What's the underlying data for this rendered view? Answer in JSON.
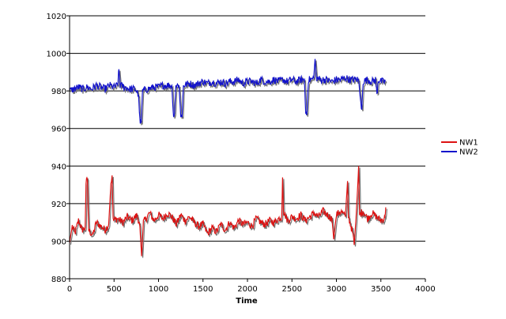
{
  "chart_data": {
    "type": "line",
    "title": "",
    "xlabel": "Time",
    "ylabel": "",
    "xlim": [
      0,
      4000
    ],
    "ylim": [
      880,
      1020
    ],
    "x_ticks": [
      0,
      500,
      1000,
      1500,
      2000,
      2500,
      3000,
      3500,
      4000
    ],
    "y_ticks": [
      880,
      900,
      920,
      940,
      960,
      980,
      1000,
      1020
    ],
    "grid": "horizontal",
    "legend_position": "right",
    "colors": {
      "NW1": "#dd1111",
      "NW2": "#1111cc",
      "shadow": "#777777",
      "axis": "#000000"
    },
    "series": [
      {
        "name": "NW1",
        "points": [
          [
            0,
            899
          ],
          [
            30,
            908
          ],
          [
            60,
            904
          ],
          [
            100,
            911
          ],
          [
            140,
            906
          ],
          [
            175,
            907
          ],
          [
            185,
            931
          ],
          [
            200,
            933
          ],
          [
            215,
            906
          ],
          [
            260,
            903
          ],
          [
            300,
            910
          ],
          [
            350,
            908
          ],
          [
            400,
            906
          ],
          [
            440,
            909
          ],
          [
            465,
            931
          ],
          [
            478,
            935
          ],
          [
            490,
            911
          ],
          [
            540,
            912
          ],
          [
            600,
            910
          ],
          [
            650,
            913
          ],
          [
            700,
            911
          ],
          [
            760,
            914
          ],
          [
            790,
            908
          ],
          [
            810,
            892
          ],
          [
            830,
            910
          ],
          [
            900,
            915
          ],
          [
            950,
            911
          ],
          [
            1000,
            914
          ],
          [
            1050,
            912
          ],
          [
            1100,
            915
          ],
          [
            1150,
            913
          ],
          [
            1200,
            909
          ],
          [
            1250,
            914
          ],
          [
            1300,
            911
          ],
          [
            1350,
            913
          ],
          [
            1400,
            910
          ],
          [
            1450,
            908
          ],
          [
            1500,
            909
          ],
          [
            1550,
            904
          ],
          [
            1600,
            907
          ],
          [
            1650,
            905
          ],
          [
            1700,
            909
          ],
          [
            1750,
            906
          ],
          [
            1800,
            910
          ],
          [
            1850,
            907
          ],
          [
            1900,
            911
          ],
          [
            1950,
            909
          ],
          [
            2000,
            910
          ],
          [
            2050,
            908
          ],
          [
            2100,
            912
          ],
          [
            2150,
            910
          ],
          [
            2200,
            909
          ],
          [
            2250,
            911
          ],
          [
            2300,
            910
          ],
          [
            2350,
            912
          ],
          [
            2385,
            913
          ],
          [
            2395,
            934
          ],
          [
            2405,
            916
          ],
          [
            2450,
            911
          ],
          [
            2500,
            913
          ],
          [
            2550,
            912
          ],
          [
            2600,
            914
          ],
          [
            2650,
            911
          ],
          [
            2700,
            913
          ],
          [
            2750,
            915
          ],
          [
            2800,
            913
          ],
          [
            2850,
            916
          ],
          [
            2900,
            914
          ],
          [
            2950,
            912
          ],
          [
            2970,
            901
          ],
          [
            3000,
            914
          ],
          [
            3050,
            916
          ],
          [
            3100,
            913
          ],
          [
            3125,
            932
          ],
          [
            3135,
            913
          ],
          [
            3180,
            905
          ],
          [
            3200,
            898
          ],
          [
            3220,
            912
          ],
          [
            3240,
            930
          ],
          [
            3250,
            940
          ],
          [
            3260,
            914
          ],
          [
            3300,
            916
          ],
          [
            3350,
            912
          ],
          [
            3400,
            915
          ],
          [
            3450,
            913
          ],
          [
            3500,
            911
          ],
          [
            3540,
            912
          ],
          [
            3555,
            918
          ]
        ]
      },
      {
        "name": "NW2",
        "points": [
          [
            0,
            980
          ],
          [
            50,
            981
          ],
          [
            100,
            982
          ],
          [
            150,
            981
          ],
          [
            200,
            982
          ],
          [
            250,
            981
          ],
          [
            300,
            983
          ],
          [
            350,
            982
          ],
          [
            400,
            981
          ],
          [
            450,
            983
          ],
          [
            500,
            982
          ],
          [
            540,
            983
          ],
          [
            555,
            991
          ],
          [
            570,
            983
          ],
          [
            620,
            982
          ],
          [
            680,
            981
          ],
          [
            740,
            981
          ],
          [
            775,
            978
          ],
          [
            790,
            964
          ],
          [
            805,
            963
          ],
          [
            820,
            980
          ],
          [
            880,
            981
          ],
          [
            950,
            982
          ],
          [
            1000,
            982
          ],
          [
            1050,
            983
          ],
          [
            1100,
            983
          ],
          [
            1150,
            983
          ],
          [
            1165,
            968
          ],
          [
            1180,
            968
          ],
          [
            1195,
            983
          ],
          [
            1230,
            983
          ],
          [
            1250,
            967
          ],
          [
            1265,
            966
          ],
          [
            1280,
            983
          ],
          [
            1350,
            984
          ],
          [
            1400,
            983
          ],
          [
            1450,
            984
          ],
          [
            1500,
            985
          ],
          [
            1550,
            984
          ],
          [
            1600,
            985
          ],
          [
            1650,
            984
          ],
          [
            1700,
            985
          ],
          [
            1750,
            984
          ],
          [
            1800,
            985
          ],
          [
            1850,
            985
          ],
          [
            1900,
            986
          ],
          [
            1950,
            984
          ],
          [
            2000,
            985
          ],
          [
            2050,
            985
          ],
          [
            2100,
            984
          ],
          [
            2150,
            986
          ],
          [
            2200,
            985
          ],
          [
            2250,
            985
          ],
          [
            2300,
            986
          ],
          [
            2350,
            985
          ],
          [
            2400,
            986
          ],
          [
            2450,
            985
          ],
          [
            2500,
            986
          ],
          [
            2550,
            985
          ],
          [
            2600,
            986
          ],
          [
            2640,
            986
          ],
          [
            2655,
            968
          ],
          [
            2670,
            969
          ],
          [
            2685,
            986
          ],
          [
            2720,
            986
          ],
          [
            2745,
            987
          ],
          [
            2760,
            997
          ],
          [
            2775,
            987
          ],
          [
            2820,
            986
          ],
          [
            2880,
            986
          ],
          [
            2950,
            985
          ],
          [
            3000,
            986
          ],
          [
            3050,
            986
          ],
          [
            3100,
            987
          ],
          [
            3150,
            986
          ],
          [
            3200,
            986
          ],
          [
            3250,
            986
          ],
          [
            3270,
            975
          ],
          [
            3285,
            970
          ],
          [
            3300,
            985
          ],
          [
            3350,
            986
          ],
          [
            3400,
            985
          ],
          [
            3440,
            986
          ],
          [
            3455,
            978
          ],
          [
            3470,
            986
          ],
          [
            3500,
            985
          ],
          [
            3550,
            985
          ]
        ]
      }
    ]
  }
}
